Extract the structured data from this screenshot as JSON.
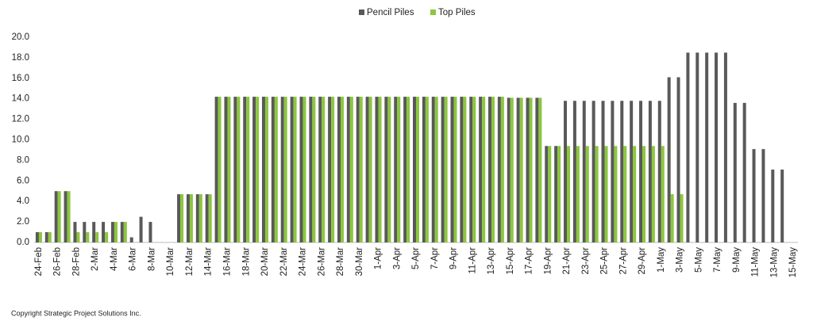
{
  "chart_data": {
    "type": "bar",
    "categories": [
      "24-Feb",
      null,
      "26-Feb",
      null,
      "28-Feb",
      null,
      "2-Mar",
      null,
      "4-Mar",
      null,
      "6-Mar",
      null,
      "8-Mar",
      null,
      "10-Mar",
      null,
      "12-Mar",
      null,
      "14-Mar",
      null,
      "16-Mar",
      null,
      "18-Mar",
      null,
      "20-Mar",
      null,
      "22-Mar",
      null,
      "24-Mar",
      null,
      "26-Mar",
      null,
      "28-Mar",
      null,
      "30-Mar",
      null,
      "1-Apr",
      null,
      "3-Apr",
      null,
      "5-Apr",
      null,
      "7-Apr",
      null,
      "9-Apr",
      null,
      "11-Apr",
      null,
      "13-Apr",
      null,
      "15-Apr",
      null,
      "17-Apr",
      null,
      "19-Apr",
      null,
      "21-Apr",
      null,
      "23-Apr",
      null,
      "25-Apr",
      null,
      "27-Apr",
      null,
      "29-Apr",
      null,
      "1-May",
      null,
      "3-May",
      null,
      "5-May",
      null,
      "7-May",
      null,
      "9-May",
      null,
      "11-May",
      null,
      "13-May",
      null,
      "15-May"
    ],
    "series": [
      {
        "name": "Pencil Piles",
        "color": "#595959",
        "values": [
          1.0,
          1.0,
          5.0,
          5.0,
          2.0,
          2.0,
          2.0,
          2.0,
          2.0,
          2.0,
          0.5,
          2.5,
          2.0,
          null,
          null,
          4.7,
          4.7,
          4.7,
          4.7,
          14.2,
          14.2,
          14.2,
          14.2,
          14.2,
          14.2,
          14.2,
          14.2,
          14.2,
          14.2,
          14.2,
          14.2,
          14.2,
          14.2,
          14.2,
          14.2,
          14.2,
          14.2,
          14.2,
          14.2,
          14.2,
          14.2,
          14.2,
          14.2,
          14.2,
          14.2,
          14.2,
          14.2,
          14.2,
          14.2,
          14.2,
          14.1,
          14.1,
          14.1,
          14.1,
          9.4,
          9.4,
          13.8,
          13.8,
          13.8,
          13.8,
          13.8,
          13.8,
          13.8,
          13.8,
          13.8,
          13.8,
          13.8,
          16.1,
          16.1,
          18.5,
          18.5,
          18.5,
          18.5,
          18.5,
          13.6,
          13.6,
          9.1,
          9.1,
          7.1,
          7.1,
          null
        ]
      },
      {
        "name": "Top Piles",
        "color": "#8cc63f",
        "values": [
          1.0,
          1.0,
          5.0,
          5.0,
          1.0,
          1.0,
          1.0,
          1.0,
          2.0,
          2.0,
          null,
          null,
          null,
          null,
          null,
          4.7,
          4.7,
          4.7,
          4.7,
          14.2,
          14.2,
          14.2,
          14.2,
          14.2,
          14.2,
          14.2,
          14.2,
          14.2,
          14.2,
          14.2,
          14.2,
          14.2,
          14.2,
          14.2,
          14.2,
          14.2,
          14.2,
          14.2,
          14.2,
          14.2,
          14.2,
          14.2,
          14.2,
          14.2,
          14.2,
          14.2,
          14.2,
          14.2,
          14.2,
          14.2,
          14.1,
          14.1,
          14.1,
          14.1,
          9.4,
          9.4,
          9.4,
          9.4,
          9.4,
          9.4,
          9.4,
          9.4,
          9.4,
          9.4,
          9.4,
          9.4,
          9.4,
          4.7,
          4.7,
          null,
          null,
          null,
          null,
          null,
          null,
          null,
          null,
          null,
          null,
          null,
          null
        ]
      }
    ],
    "ylim": [
      0,
      20
    ],
    "yticks": [
      {
        "value": 0,
        "label": "0.0"
      },
      {
        "value": 2,
        "label": "2.0"
      },
      {
        "value": 4,
        "label": "4.0"
      },
      {
        "value": 6,
        "label": "6.0"
      },
      {
        "value": 8,
        "label": "8.0"
      },
      {
        "value": 10,
        "label": "10.0"
      },
      {
        "value": 12,
        "label": "12.0"
      },
      {
        "value": 14,
        "label": "14.0"
      },
      {
        "value": 16,
        "label": "16.0"
      },
      {
        "value": 18,
        "label": "18.0"
      },
      {
        "value": 20,
        "label": "20.0"
      }
    ],
    "grid": false,
    "legend": "top"
  },
  "footer": "Copyright Strategic Project Solutions Inc."
}
